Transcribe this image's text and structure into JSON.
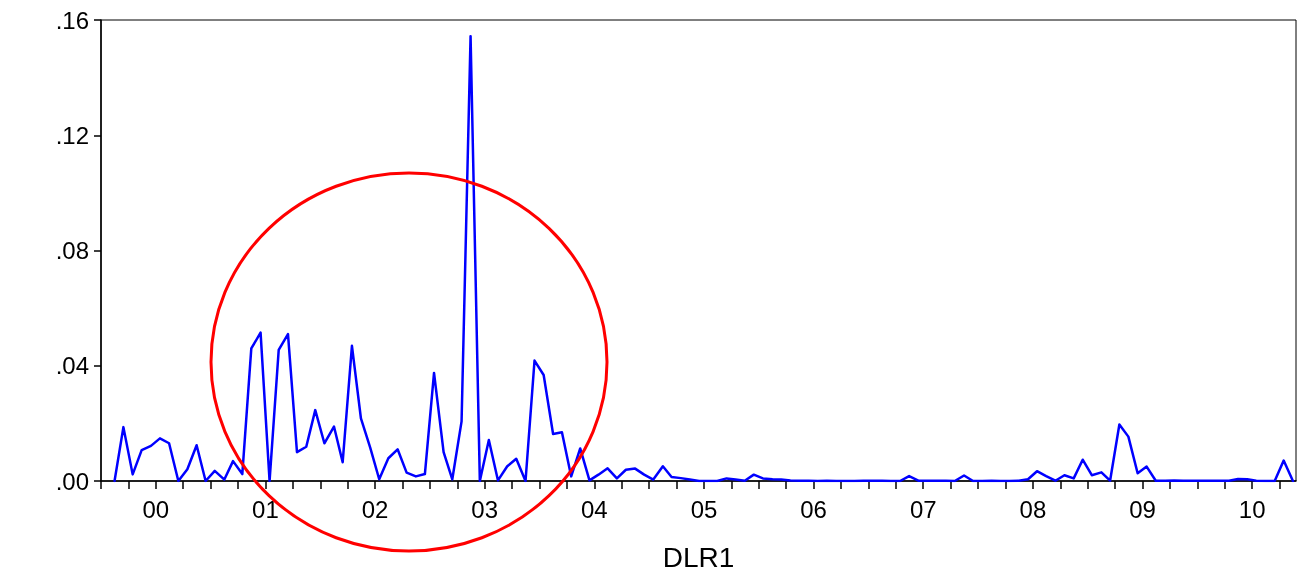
{
  "chart_data": {
    "type": "line",
    "xlabel": "DLR1",
    "x": [
      "2000-02-15",
      "2000-03-15",
      "2000-04-15",
      "2000-05-15",
      "2000-06-15",
      "2000-07-15",
      "2000-08-15",
      "2000-09-15",
      "2000-10-15",
      "2000-11-15",
      "2000-12-15",
      "2001-01-15",
      "2001-02-15",
      "2001-03-15",
      "2001-04-15",
      "2001-05-15",
      "2001-06-15",
      "2001-07-15",
      "2001-08-15",
      "2001-09-15",
      "2001-10-15",
      "2001-11-15",
      "2001-12-15",
      "2002-01-15",
      "2002-02-15",
      "2002-03-15",
      "2002-04-15",
      "2002-05-15",
      "2002-06-15",
      "2002-07-15",
      "2002-08-15",
      "2002-09-15",
      "2002-10-15",
      "2002-11-15",
      "2002-12-15",
      "2003-01-15",
      "2003-02-15",
      "2003-03-15",
      "2003-04-15",
      "2003-05-15",
      "2003-06-15",
      "2003-07-15",
      "2003-08-15",
      "2003-09-15",
      "2003-10-15",
      "2003-11-15",
      "2003-12-15",
      "2004-01-15",
      "2004-02-15",
      "2004-03-15",
      "2004-04-15",
      "2004-05-15",
      "2004-06-15",
      "2004-07-15",
      "2004-08-15",
      "2004-09-15",
      "2004-10-15",
      "2004-11-15",
      "2004-12-15",
      "2005-01-15",
      "2005-02-15",
      "2005-03-15",
      "2005-04-15",
      "2005-05-15",
      "2005-06-15",
      "2005-07-15",
      "2005-08-15",
      "2005-09-15",
      "2005-10-15",
      "2005-11-15",
      "2005-12-15",
      "2006-01-15",
      "2006-02-15",
      "2006-03-15",
      "2006-04-15",
      "2006-05-15",
      "2006-06-15",
      "2006-07-15",
      "2006-08-15",
      "2006-09-15",
      "2006-10-15",
      "2006-11-15",
      "2006-12-15",
      "2007-01-15",
      "2007-02-15",
      "2007-03-15",
      "2007-04-15",
      "2007-05-15",
      "2007-06-15",
      "2007-07-15",
      "2007-08-15",
      "2007-09-15",
      "2007-10-15",
      "2007-11-15",
      "2007-12-15",
      "2008-01-15",
      "2008-02-15",
      "2008-03-15",
      "2008-04-15",
      "2008-05-15",
      "2008-06-15",
      "2008-07-15",
      "2008-08-15",
      "2008-09-15",
      "2008-10-15",
      "2008-11-15",
      "2008-12-15",
      "2009-01-15",
      "2009-02-15",
      "2009-03-15",
      "2009-04-15",
      "2009-05-15",
      "2009-06-15",
      "2009-07-15",
      "2009-08-15",
      "2009-09-15",
      "2009-10-15",
      "2009-11-15",
      "2009-12-15",
      "2010-01-15",
      "2010-02-15",
      "2010-03-15",
      "2010-04-15",
      "2010-05-15",
      "2010-06-15",
      "2010-07-15",
      "2010-08-15",
      "2010-09-15",
      "2010-10-15",
      "2010-11-15"
    ],
    "series": [
      {
        "color": "#0000ff",
        "values": [
          0,
          0.0187,
          0.0023,
          0.0107,
          0.0122,
          0.0148,
          0.0131,
          0,
          0.0041,
          0.0124,
          0,
          0.0035,
          0.0005,
          0.0069,
          0.0024,
          0.046,
          0.0515,
          0,
          0.0455,
          0.051,
          0.01,
          0.0119,
          0.0246,
          0.0131,
          0.0189,
          0.0065,
          0.0469,
          0.0217,
          0.0116,
          0.0006,
          0.0079,
          0.011,
          0.0029,
          0.0016,
          0.0024,
          0.0375,
          0.01,
          0.0006,
          0.0207,
          0.1544,
          0,
          0.0142,
          0.0002,
          0.0051,
          0.0077,
          0,
          0.0418,
          0.0368,
          0.0163,
          0.0169,
          0.0016,
          0.0113,
          0.0002,
          0.0022,
          0.0044,
          0.0009,
          0.0039,
          0.0043,
          0.0022,
          0.0005,
          0.0051,
          0.0014,
          0.001,
          0.0005,
          0,
          0,
          0,
          0.0009,
          0.0005,
          0.0001,
          0.0022,
          0.0009,
          0.0006,
          0.0005,
          0.0002,
          0.0001,
          0.0001,
          0,
          0.0001,
          0,
          0,
          0,
          0.0001,
          0.0001,
          0.0001,
          0,
          0,
          0.0017,
          0.0001,
          0.0001,
          0.0001,
          0.0001,
          0,
          0.0019,
          0,
          0,
          0.0001,
          0,
          0,
          0.0001,
          0.0006,
          0.0034,
          0.0017,
          0.0001,
          0.002,
          0.0009,
          0.0074,
          0.002,
          0.003,
          0.0001,
          0.0196,
          0.0154,
          0.0027,
          0.005,
          0.0001,
          0.0001,
          0.0002,
          0.0001,
          0.0001,
          0.0001,
          0.0001,
          0.0001,
          0.0001,
          0.0007,
          0.0006,
          0.0001,
          0,
          0,
          0.0071,
          0
        ]
      }
    ],
    "xlim": [
      "2000-01-01",
      "2010-11-25"
    ],
    "xticks": [
      {
        "value": "2000-01-01",
        "label": null
      },
      {
        "value": "2000-04-01",
        "label": null
      },
      {
        "value": "2000-07-01",
        "label": "00"
      },
      {
        "value": "2000-10-01",
        "label": null
      },
      {
        "value": "2001-01-01",
        "label": null
      },
      {
        "value": "2001-04-01",
        "label": null
      },
      {
        "value": "2001-07-01",
        "label": "01"
      },
      {
        "value": "2001-10-01",
        "label": null
      },
      {
        "value": "2002-01-01",
        "label": null
      },
      {
        "value": "2002-04-01",
        "label": null
      },
      {
        "value": "2002-07-01",
        "label": "02"
      },
      {
        "value": "2002-10-01",
        "label": null
      },
      {
        "value": "2003-01-01",
        "label": null
      },
      {
        "value": "2003-04-01",
        "label": null
      },
      {
        "value": "2003-07-01",
        "label": "03"
      },
      {
        "value": "2003-10-01",
        "label": null
      },
      {
        "value": "2004-01-01",
        "label": null
      },
      {
        "value": "2004-04-01",
        "label": null
      },
      {
        "value": "2004-07-01",
        "label": "04"
      },
      {
        "value": "2004-10-01",
        "label": null
      },
      {
        "value": "2005-01-01",
        "label": null
      },
      {
        "value": "2005-04-01",
        "label": null
      },
      {
        "value": "2005-07-01",
        "label": "05"
      },
      {
        "value": "2005-10-01",
        "label": null
      },
      {
        "value": "2006-01-01",
        "label": null
      },
      {
        "value": "2006-04-01",
        "label": null
      },
      {
        "value": "2006-07-01",
        "label": "06"
      },
      {
        "value": "2006-10-01",
        "label": null
      },
      {
        "value": "2007-01-01",
        "label": null
      },
      {
        "value": "2007-04-01",
        "label": null
      },
      {
        "value": "2007-07-01",
        "label": "07"
      },
      {
        "value": "2007-10-01",
        "label": null
      },
      {
        "value": "2008-01-01",
        "label": null
      },
      {
        "value": "2008-04-01",
        "label": null
      },
      {
        "value": "2008-07-01",
        "label": "08"
      },
      {
        "value": "2008-10-01",
        "label": null
      },
      {
        "value": "2009-01-01",
        "label": null
      },
      {
        "value": "2009-04-01",
        "label": null
      },
      {
        "value": "2009-07-01",
        "label": "09"
      },
      {
        "value": "2009-10-01",
        "label": null
      },
      {
        "value": "2010-01-01",
        "label": null
      },
      {
        "value": "2010-04-01",
        "label": null
      },
      {
        "value": "2010-07-01",
        "label": "10"
      },
      {
        "value": "2010-10-01",
        "label": null
      }
    ],
    "ylim": [
      0,
      0.16
    ],
    "yticks": [
      {
        "value": 0,
        "label": ".00"
      },
      {
        "value": 0.04,
        "label": ".04"
      },
      {
        "value": 0.08,
        "label": ".08"
      },
      {
        "value": 0.12,
        "label": ".12"
      },
      {
        "value": 0.16,
        "label": ".16"
      }
    ],
    "line_style": "solid",
    "marker": "none"
  }
}
